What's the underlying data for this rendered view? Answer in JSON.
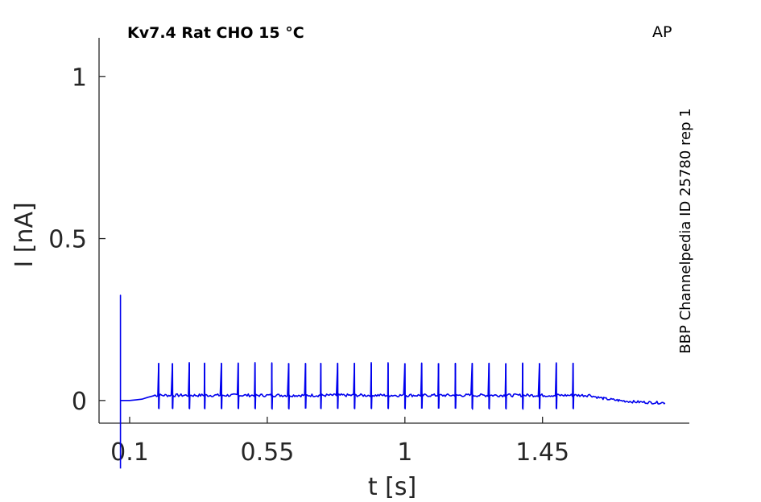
{
  "chart_data": {
    "type": "line",
    "title": "Kv7.4  Rat  CHO  15 °C",
    "corner_label": "AP",
    "side_label": "BBP Channelpedia ID 25780 rep 1",
    "xlabel": "t [s]",
    "ylabel": "I [nA]",
    "xlim": [
      0.0,
      1.93
    ],
    "ylim": [
      -0.07,
      1.12
    ],
    "xticks": [
      0.1,
      0.55,
      1,
      1.45
    ],
    "xtick_labels": [
      "0.1",
      "0.55",
      "1",
      "1.45"
    ],
    "yticks": [
      0,
      0.5,
      1
    ],
    "ytick_labels": [
      "0",
      "0.5",
      "1"
    ],
    "grid": false,
    "colors": {
      "trace": "#0000ee",
      "axis": "#262626"
    },
    "series": [
      {
        "segments": [
          {
            "t": [
              0.07,
              0.07,
              0.07
            ],
            "i": [
              -0.21,
              0.325,
              0.0
            ]
          },
          {
            "t": [
              0.07,
              0.1,
              0.12,
              0.14,
              0.16,
              0.18
            ],
            "i": [
              0.0,
              0.0,
              0.002,
              0.004,
              0.01,
              0.015
            ]
          },
          {
            "t": [
              1.6,
              1.62,
              1.65,
              1.7,
              1.75,
              1.8,
              1.85
            ],
            "i": [
              0.018,
              0.012,
              0.006,
              0.0,
              -0.004,
              -0.006,
              -0.007
            ]
          }
        ],
        "baseline": {
          "t_start": 0.18,
          "t_end": 1.6,
          "i": 0.016
        },
        "spike_times": [
          0.195,
          0.24,
          0.295,
          0.345,
          0.4,
          0.455,
          0.51,
          0.565,
          0.62,
          0.675,
          0.725,
          0.78,
          0.835,
          0.89,
          0.945,
          1.0,
          1.055,
          1.11,
          1.165,
          1.22,
          1.275,
          1.33,
          1.385,
          1.44,
          1.495,
          1.55
        ],
        "spike_peak": 0.115,
        "spike_trough": -0.025
      }
    ]
  }
}
